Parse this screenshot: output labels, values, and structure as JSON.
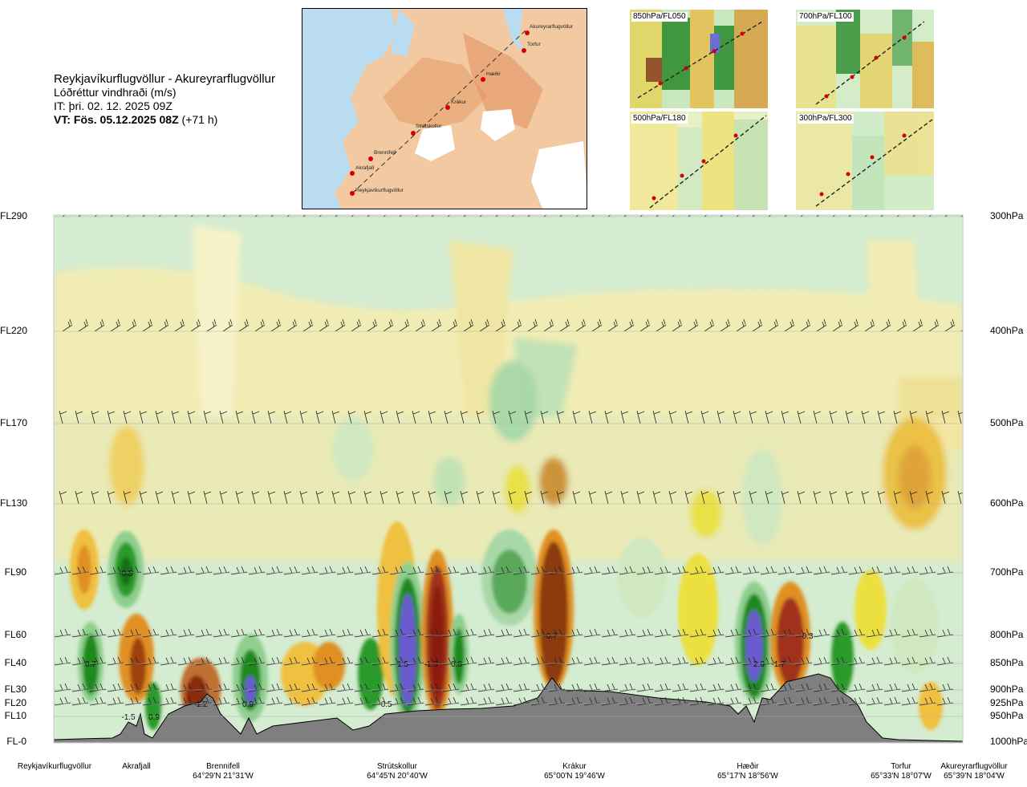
{
  "header": {
    "route": "Reykjavíkurflugvöllur - Akureyrarflugvöllur",
    "subtitle": "Lóðréttur vindhraði (m/s)",
    "issue_time": "IT: þri. 02. 12. 2025 09Z",
    "valid_prefix": "VT: Fös. 05.12.2025 08Z",
    "valid_offset": "(+71 h)"
  },
  "route_map": {
    "places": [
      "Akureyrarflugvöllur",
      "Torfur",
      "Hæðir",
      "Krákur",
      "Strútskollur",
      "Brennifell",
      "Akrafjall",
      "Reykjavíkurflugvöllur"
    ]
  },
  "mini_maps": [
    {
      "label": "850hPa/FL050"
    },
    {
      "label": "700hPa/FL100"
    },
    {
      "label": "500hPa/FL180"
    },
    {
      "label": "300hPa/FL300"
    }
  ],
  "chart_data": {
    "type": "heatmap",
    "title": "Lóðréttur vindhraði (m/s)",
    "left_axis_levels": [
      "FL290",
      "FL220",
      "FL170",
      "FL130",
      "FL90",
      "FL60",
      "FL40",
      "FL30",
      "FL20",
      "FL10",
      "FL-0"
    ],
    "right_axis_levels": [
      "300hPa",
      "400hPa",
      "500hPa",
      "600hPa",
      "700hPa",
      "800hPa",
      "850hPa",
      "900hPa",
      "925hPa",
      "950hPa",
      "1000hPa"
    ],
    "locations": [
      {
        "name": "Reykjavíkurflugvöllur",
        "coord": ""
      },
      {
        "name": "Akrafjall",
        "coord": ""
      },
      {
        "name": "Brennifell",
        "coord": "64°29'N 21°31'W"
      },
      {
        "name": "Strútskollur",
        "coord": "64°45'N 20°40'W"
      },
      {
        "name": "Krákur",
        "coord": "65°00'N 19°46'W"
      },
      {
        "name": "Hæðir",
        "coord": "65°17'N 18°56'W"
      },
      {
        "name": "Torfur",
        "coord": "65°33'N 18°07'W"
      },
      {
        "name": "Akureyrarflugvöllur",
        "coord": "65°39'N 18°04'W"
      }
    ],
    "annotations": [
      {
        "text": "0.7",
        "position": "near Reykjavíkurflugvöllur at FL40"
      },
      {
        "text": "-0.5",
        "position": "Akrafjall at FL90"
      },
      {
        "text": "-1.5",
        "position": "Akrafjall at FL10"
      },
      {
        "text": "0.9",
        "position": "Akrafjall at FL10"
      },
      {
        "text": "-1.2",
        "position": "Brennifell at FL20"
      },
      {
        "text": "0.9",
        "position": "Brennifell at FL20"
      },
      {
        "text": "-0.5",
        "position": "Brennifell–Strútskollur at FL20"
      },
      {
        "text": "1.5",
        "position": "Strútskollur at FL40"
      },
      {
        "text": "-1.3",
        "position": "Strútskollur at FL40"
      },
      {
        "text": "0.8",
        "position": "Strútskollur at FL40"
      },
      {
        "text": "-0.7",
        "position": "Krákur at FL60"
      },
      {
        "text": "2.0",
        "position": "Hæðir at FL40"
      },
      {
        "text": "-1.7",
        "position": "Hæðir at FL40"
      },
      {
        "text": "-0.3",
        "position": "Hæðir at FL60"
      }
    ],
    "colors": {
      "updraft_strong": "#6a5acd",
      "updraft": "#1e8a1e",
      "updraft_weak": "#a8d8a8",
      "background": "#d4ecd0",
      "downdraft_weak": "#f5e8a0",
      "downdraft": "#e0a020",
      "downdraft_strong": "#8b1a10",
      "terrain": "#808080"
    }
  }
}
